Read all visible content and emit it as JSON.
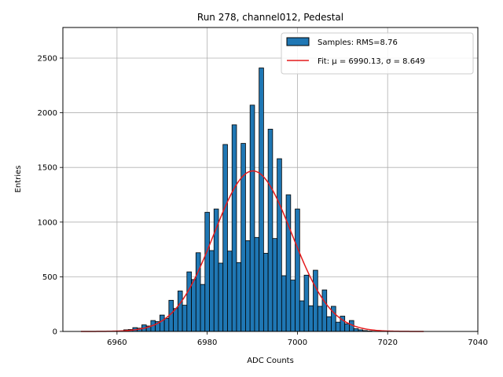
{
  "chart_data": {
    "type": "bar",
    "title": "Run 278, channel012, Pedestal",
    "xlabel": "ADC Counts",
    "ylabel": "Entries",
    "xlim": [
      6948,
      7040
    ],
    "ylim": [
      0,
      2780
    ],
    "xticks": [
      6960,
      6980,
      7000,
      7020,
      7040
    ],
    "yticks": [
      0,
      500,
      1000,
      1500,
      2000,
      2500
    ],
    "grid": true,
    "legend_position": "top-right",
    "histogram": {
      "name": "Samples: RMS=8.76",
      "color": "#1f77b4",
      "bin_width": 1,
      "bin_centers": [
        6962,
        6963,
        6964,
        6965,
        6966,
        6967,
        6968,
        6969,
        6970,
        6971,
        6972,
        6973,
        6974,
        6975,
        6976,
        6977,
        6978,
        6979,
        6980,
        6981,
        6982,
        6983,
        6984,
        6985,
        6986,
        6987,
        6988,
        6989,
        6990,
        6991,
        6992,
        6993,
        6994,
        6995,
        6996,
        6997,
        6998,
        6999,
        7000,
        7001,
        7002,
        7003,
        7004,
        7005,
        7006,
        7007,
        7008,
        7009,
        7010,
        7011,
        7012,
        7013,
        7014,
        7015,
        7016,
        7017
      ],
      "values": [
        15,
        18,
        35,
        30,
        60,
        50,
        100,
        90,
        150,
        120,
        285,
        210,
        370,
        240,
        545,
        475,
        720,
        430,
        1090,
        740,
        1120,
        625,
        1710,
        735,
        1890,
        630,
        1720,
        830,
        2070,
        860,
        2410,
        715,
        1850,
        850,
        1580,
        510,
        1250,
        470,
        1120,
        280,
        515,
        235,
        560,
        230,
        380,
        135,
        230,
        85,
        140,
        70,
        100,
        25,
        15,
        8,
        4,
        2
      ]
    },
    "fit": {
      "name": "Fit: μ = 6990.13, σ = 8.649",
      "color": "#e41a1c",
      "mu": 6990.13,
      "sigma": 8.649,
      "amplitude": 1468,
      "x_range": [
        6952,
        7028
      ]
    }
  }
}
